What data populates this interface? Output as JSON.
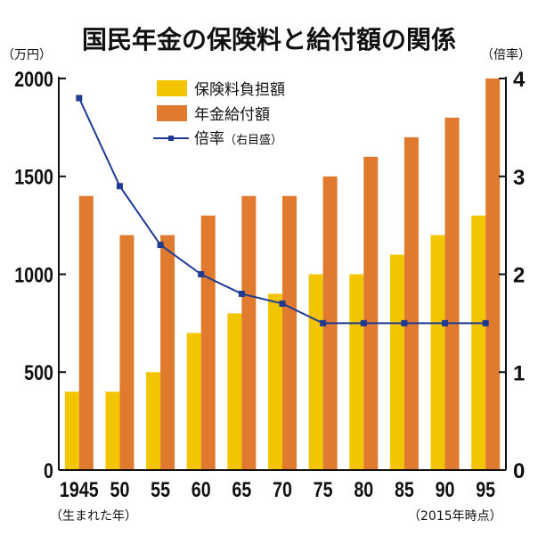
{
  "chart_data": {
    "type": "bar",
    "title": "国民年金の保険料と給付額の関係",
    "ylabel_left": "（万円）",
    "ylabel_right": "（倍率）",
    "xlabel_left": "（生まれた年）",
    "xlabel_right": "（2015年時点）",
    "categories": [
      "1945",
      "50",
      "55",
      "60",
      "65",
      "70",
      "75",
      "80",
      "85",
      "90",
      "95"
    ],
    "ylim_left": [
      0,
      2000
    ],
    "yticks_left": [
      "0",
      "500",
      "1000",
      "1500",
      "2000"
    ],
    "ylim_right": [
      0,
      4
    ],
    "yticks_right": [
      "0",
      "1",
      "2",
      "3",
      "4"
    ],
    "series": [
      {
        "name": "保険料負担額",
        "type": "bar",
        "axis": "left",
        "color": "#F2C500",
        "values": [
          400,
          400,
          500,
          700,
          800,
          900,
          1000,
          1000,
          1100,
          1200,
          1300
        ]
      },
      {
        "name": "年金給付額",
        "type": "bar",
        "axis": "left",
        "color": "#E07A2E",
        "values": [
          1400,
          1200,
          1200,
          1300,
          1400,
          1400,
          1500,
          1600,
          1700,
          1800,
          2000
        ]
      },
      {
        "name": "倍率",
        "name_note": "（右目盛）",
        "type": "line",
        "axis": "right",
        "color": "#1F3A93",
        "values": [
          3.8,
          2.9,
          2.3,
          2.0,
          1.8,
          1.7,
          1.5,
          1.5,
          1.5,
          1.5,
          1.5
        ]
      }
    ],
    "legend": "top-left"
  }
}
